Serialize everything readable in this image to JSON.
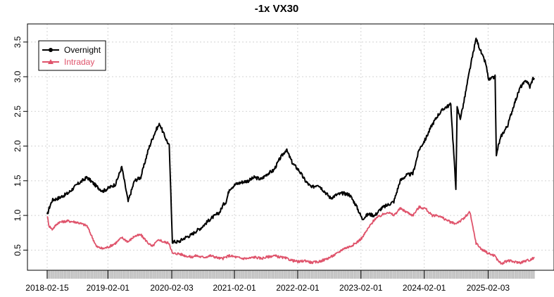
{
  "chart_data": {
    "type": "line",
    "title": "-1x VX30",
    "xlabel": "",
    "ylabel": "",
    "x_tick_labels": [
      "2018-02-15",
      "2019-02-01",
      "2020-02-03",
      "2021-02-01",
      "2022-02-01",
      "2023-02-01",
      "2024-02-01",
      "2025-02-03"
    ],
    "x_tick_years": [
      2018.12,
      2019.08,
      2020.09,
      2021.08,
      2022.08,
      2023.08,
      2024.08,
      2025.09
    ],
    "xlim": [
      2018.12,
      2025.82
    ],
    "y_tick_labels": [
      "0.5",
      "1.0",
      "1.5",
      "2.0",
      "2.5",
      "3.0",
      "3.5"
    ],
    "y_ticks": [
      0.5,
      1.0,
      1.5,
      2.0,
      2.5,
      3.0,
      3.5
    ],
    "ylim": [
      0.25,
      3.68
    ],
    "grid": true,
    "legend_position": "top-left",
    "colors": {
      "overnight": "#000000",
      "intraday": "#DF536B",
      "axis": "#BEBEBE",
      "grid": "#D3D3D3"
    },
    "series": [
      {
        "name": "Overnight",
        "color": "#000000",
        "marker": "circle",
        "x": [
          2018.12,
          2018.15,
          2018.2,
          2018.3,
          2018.45,
          2018.6,
          2018.75,
          2018.9,
          2019.0,
          2019.1,
          2019.2,
          2019.3,
          2019.4,
          2019.5,
          2019.6,
          2019.72,
          2019.78,
          2019.85,
          2019.9,
          2019.95,
          2020.05,
          2020.1,
          2020.2,
          2020.3,
          2020.4,
          2020.48,
          2020.55,
          2020.62,
          2020.7,
          2020.78,
          2020.85,
          2020.9,
          2020.95,
          2021.0,
          2021.1,
          2021.2,
          2021.3,
          2021.4,
          2021.5,
          2021.6,
          2021.7,
          2021.8,
          2021.9,
          2022.0,
          2022.1,
          2022.2,
          2022.3,
          2022.4,
          2022.5,
          2022.6,
          2022.7,
          2022.8,
          2022.9,
          2023.0,
          2023.1,
          2023.2,
          2023.3,
          2023.4,
          2023.5,
          2023.6,
          2023.7,
          2023.8,
          2023.9,
          2024.0,
          2024.1,
          2024.2,
          2024.3,
          2024.4,
          2024.5,
          2024.58,
          2024.6,
          2024.65,
          2024.7,
          2024.8,
          2024.9,
          2025.0,
          2025.05,
          2025.1,
          2025.2,
          2025.22,
          2025.25,
          2025.3,
          2025.4,
          2025.5,
          2025.6,
          2025.7,
          2025.75,
          2025.8,
          2025.82
        ],
        "y": [
          1.0,
          1.1,
          1.22,
          1.25,
          1.32,
          1.45,
          1.55,
          1.42,
          1.35,
          1.4,
          1.45,
          1.7,
          1.2,
          1.5,
          1.55,
          1.95,
          2.1,
          2.25,
          2.32,
          2.2,
          2.0,
          0.62,
          0.62,
          0.68,
          0.72,
          0.78,
          0.82,
          0.88,
          0.95,
          1.0,
          1.05,
          1.15,
          1.2,
          1.38,
          1.45,
          1.48,
          1.5,
          1.55,
          1.52,
          1.6,
          1.65,
          1.82,
          1.95,
          1.75,
          1.65,
          1.5,
          1.4,
          1.45,
          1.35,
          1.25,
          1.3,
          1.32,
          1.3,
          1.15,
          0.95,
          1.02,
          1.0,
          1.1,
          1.15,
          1.2,
          1.5,
          1.58,
          1.6,
          1.95,
          2.1,
          2.3,
          2.45,
          2.55,
          2.6,
          1.4,
          2.55,
          2.4,
          2.6,
          3.1,
          3.55,
          3.3,
          3.2,
          2.95,
          3.0,
          1.85,
          2.0,
          2.15,
          2.3,
          2.6,
          2.85,
          2.95,
          2.85,
          2.98,
          2.98
        ]
      },
      {
        "name": "Intraday",
        "color": "#DF536B",
        "marker": "triangle",
        "x": [
          2018.12,
          2018.15,
          2018.2,
          2018.3,
          2018.45,
          2018.6,
          2018.75,
          2018.9,
          2019.0,
          2019.1,
          2019.2,
          2019.3,
          2019.4,
          2019.5,
          2019.6,
          2019.72,
          2019.78,
          2019.85,
          2019.9,
          2019.95,
          2020.05,
          2020.1,
          2020.2,
          2020.3,
          2020.4,
          2020.48,
          2020.55,
          2020.62,
          2020.7,
          2020.78,
          2020.85,
          2020.9,
          2020.95,
          2021.0,
          2021.1,
          2021.2,
          2021.3,
          2021.4,
          2021.5,
          2021.6,
          2021.7,
          2021.8,
          2021.9,
          2022.0,
          2022.1,
          2022.2,
          2022.3,
          2022.4,
          2022.5,
          2022.6,
          2022.7,
          2022.8,
          2022.9,
          2023.0,
          2023.1,
          2023.2,
          2023.3,
          2023.4,
          2023.5,
          2023.6,
          2023.7,
          2023.8,
          2023.9,
          2024.0,
          2024.1,
          2024.2,
          2024.3,
          2024.4,
          2024.5,
          2024.58,
          2024.6,
          2024.65,
          2024.7,
          2024.8,
          2024.9,
          2025.0,
          2025.05,
          2025.1,
          2025.2,
          2025.22,
          2025.25,
          2025.3,
          2025.4,
          2025.5,
          2025.6,
          2025.7,
          2025.75,
          2025.8,
          2025.82
        ],
        "y": [
          1.0,
          0.85,
          0.8,
          0.9,
          0.92,
          0.9,
          0.85,
          0.55,
          0.52,
          0.55,
          0.6,
          0.68,
          0.62,
          0.7,
          0.72,
          0.6,
          0.55,
          0.62,
          0.65,
          0.62,
          0.6,
          0.45,
          0.45,
          0.42,
          0.4,
          0.42,
          0.4,
          0.4,
          0.42,
          0.4,
          0.38,
          0.38,
          0.4,
          0.42,
          0.4,
          0.38,
          0.38,
          0.4,
          0.38,
          0.4,
          0.42,
          0.4,
          0.38,
          0.35,
          0.33,
          0.35,
          0.32,
          0.33,
          0.36,
          0.4,
          0.45,
          0.52,
          0.55,
          0.6,
          0.68,
          0.82,
          0.95,
          1.0,
          1.05,
          1.0,
          1.1,
          1.05,
          1.0,
          1.12,
          1.1,
          1.0,
          1.0,
          0.95,
          0.9,
          0.88,
          0.9,
          0.92,
          0.95,
          1.05,
          0.6,
          0.5,
          0.48,
          0.45,
          0.42,
          0.38,
          0.35,
          0.3,
          0.35,
          0.33,
          0.32,
          0.35,
          0.36,
          0.38,
          0.4
        ]
      }
    ]
  }
}
